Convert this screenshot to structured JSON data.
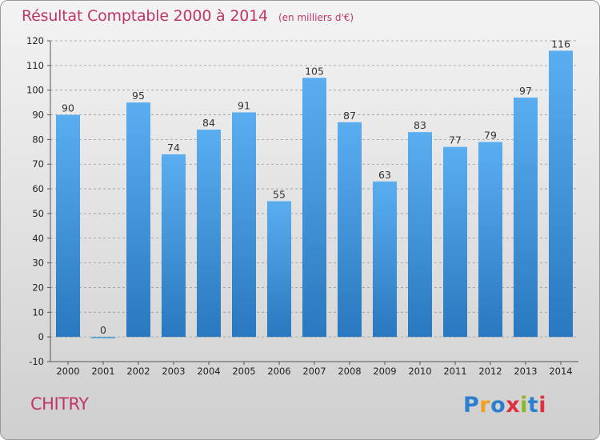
{
  "header": {
    "title": "Résultat Comptable 2000 à 2014",
    "subtitle": "(en milliers d'€)"
  },
  "commune": "CHITRY",
  "logo": {
    "text": "Proxiti",
    "letter_colors": [
      "#2b7fd0",
      "#f0a020",
      "#2b7fd0",
      "#e03040",
      "#8ab820",
      "#2b7fd0",
      "#e03040"
    ]
  },
  "colors": {
    "title": "#c0356a",
    "bar_top": "#5aaef0",
    "bar_bottom": "#2a78bf",
    "grid": "#9a9a9a"
  },
  "chart_data": {
    "type": "bar",
    "title": "Résultat Comptable 2000 à 2014",
    "subtitle": "(en milliers d'€)",
    "categories": [
      "2000",
      "2001",
      "2002",
      "2003",
      "2004",
      "2005",
      "2006",
      "2007",
      "2008",
      "2009",
      "2010",
      "2011",
      "2012",
      "2013",
      "2014"
    ],
    "values": [
      90,
      0,
      95,
      74,
      84,
      91,
      55,
      105,
      87,
      63,
      83,
      77,
      79,
      97,
      116
    ],
    "ylim": [
      -10,
      120
    ],
    "yticks": [
      -10,
      0,
      10,
      20,
      30,
      40,
      50,
      60,
      70,
      80,
      90,
      100,
      110,
      120
    ],
    "grid": "horizontal dashed",
    "legend": "none"
  }
}
